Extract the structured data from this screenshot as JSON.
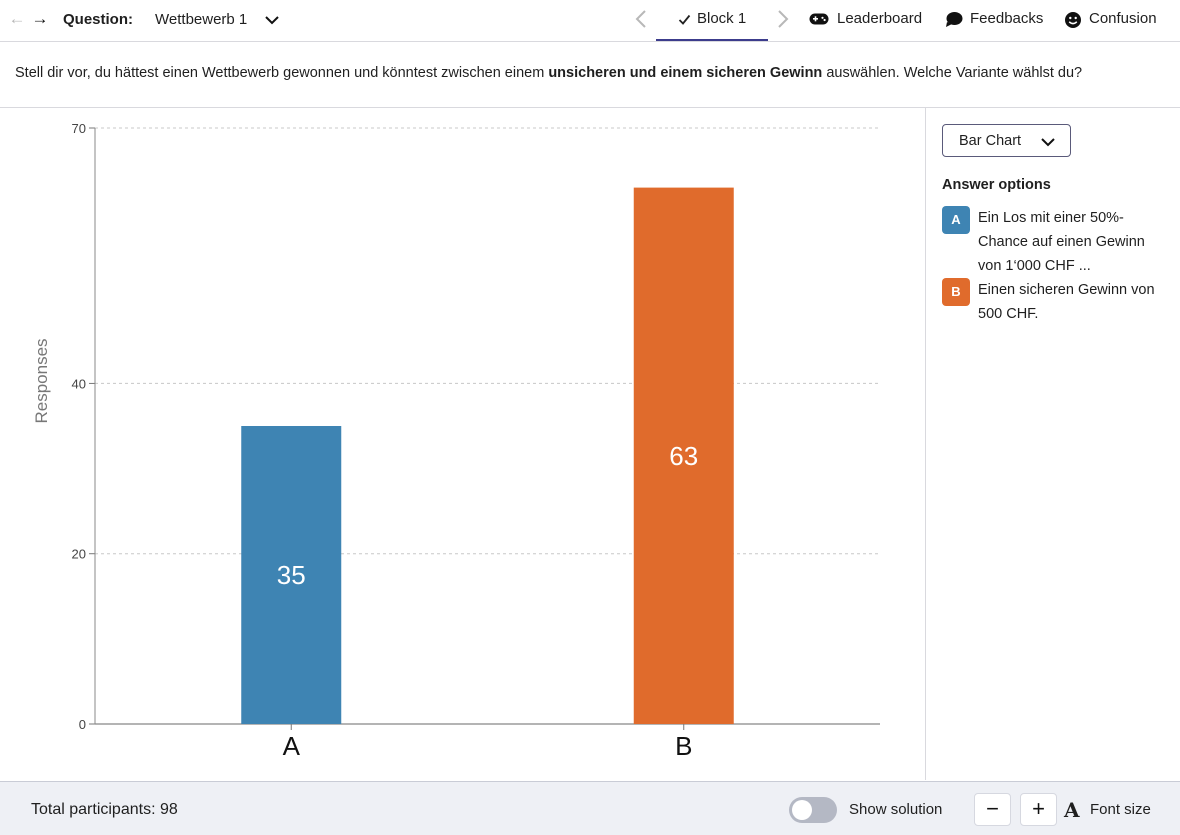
{
  "topbar": {
    "question_label": "Question:",
    "question_title": "Wettbewerb 1",
    "block_label": "Block 1",
    "leaderboard": "Leaderboard",
    "feedbacks": "Feedbacks",
    "confusion": "Confusion"
  },
  "question": {
    "text_before": "Stell dir vor, du hättest einen Wettbewerb gewonnen und könntest zwischen einem ",
    "text_bold": "unsicheren und einem sicheren Gewinn",
    "text_after": " auswählen. Welche Variante wählst du?"
  },
  "panel": {
    "chart_type": "Bar Chart",
    "options_heading": "Answer options",
    "options": [
      {
        "badge": "A",
        "text": "Ein Los mit einer 50%-Chance auf einen Gewinn von 1‘000 CHF ...",
        "color": "#3e84b3"
      },
      {
        "badge": "B",
        "text": "Einen sicheren Gewinn von 500 CHF.",
        "color": "#e06b2c"
      }
    ]
  },
  "footer": {
    "total": "Total participants: 98",
    "show_solution": "Show solution",
    "minus": "−",
    "plus": "+",
    "font_icon": "A",
    "font_size": "Font size"
  },
  "chart_data": {
    "type": "bar",
    "categories": [
      "A",
      "B"
    ],
    "values": [
      35,
      63
    ],
    "colors": [
      "#3e84b3",
      "#e06b2c"
    ],
    "ylabel": "Responses",
    "yticks": [
      0,
      20,
      40,
      70
    ],
    "ylim": [
      0,
      70
    ],
    "grid": true
  }
}
